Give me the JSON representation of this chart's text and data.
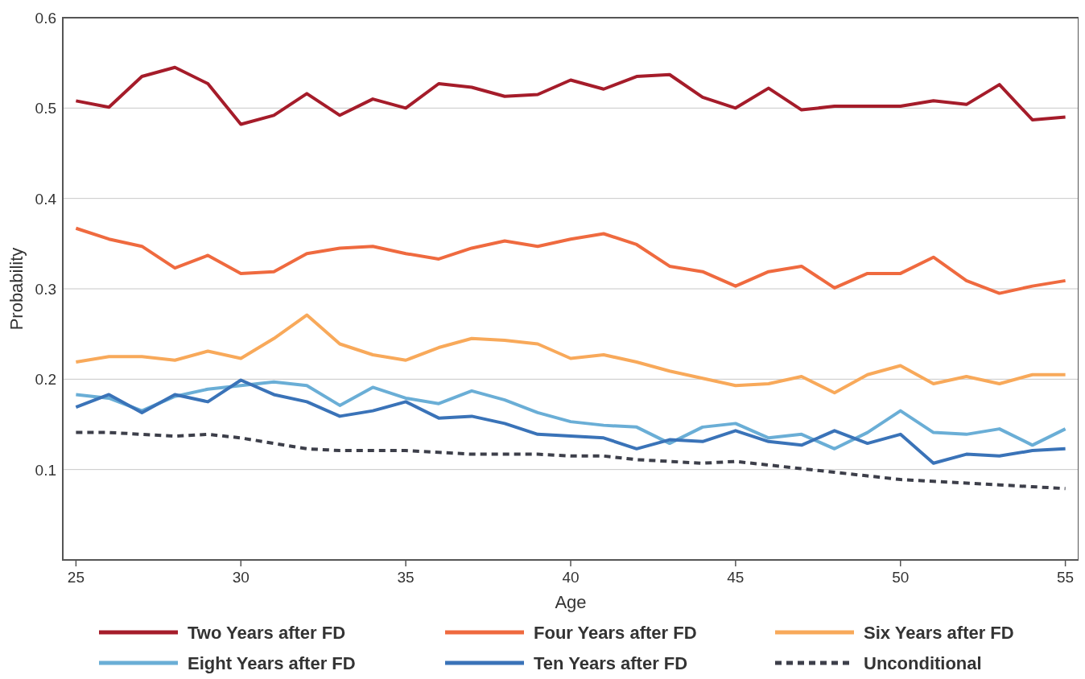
{
  "chart_data": {
    "type": "line",
    "xlabel": "Age",
    "ylabel": "Probability",
    "x": [
      25,
      26,
      27,
      28,
      29,
      30,
      31,
      32,
      33,
      34,
      35,
      36,
      37,
      38,
      39,
      40,
      41,
      42,
      43,
      44,
      45,
      46,
      47,
      48,
      49,
      50,
      51,
      52,
      53,
      54,
      55
    ],
    "xlim": [
      24.6,
      55.4
    ],
    "xticks": [
      25,
      30,
      35,
      40,
      45,
      50,
      55
    ],
    "ylim": [
      0,
      0.6
    ],
    "yticks": [
      0.1,
      0.2,
      0.3,
      0.4,
      0.5,
      0.6
    ],
    "grid": "y",
    "legend": "bottom",
    "series": [
      {
        "name": "Two Years after FD",
        "color": "#a51c2a",
        "values": [
          0.508,
          0.501,
          0.535,
          0.545,
          0.527,
          0.482,
          0.492,
          0.516,
          0.492,
          0.51,
          0.5,
          0.527,
          0.523,
          0.513,
          0.515,
          0.531,
          0.521,
          0.535,
          0.537,
          0.512,
          0.5,
          0.522,
          0.498,
          0.502,
          0.502,
          0.502,
          0.508,
          0.504,
          0.526,
          0.487,
          0.49
        ]
      },
      {
        "name": "Four Years after FD",
        "color": "#ef6a3f",
        "values": [
          0.367,
          0.355,
          0.347,
          0.323,
          0.337,
          0.317,
          0.319,
          0.339,
          0.345,
          0.347,
          0.339,
          0.333,
          0.345,
          0.353,
          0.347,
          0.355,
          0.361,
          0.349,
          0.325,
          0.319,
          0.303,
          0.319,
          0.325,
          0.301,
          0.317,
          0.317,
          0.335,
          0.309,
          0.295,
          0.303,
          0.309
        ]
      },
      {
        "name": "Six Years after FD",
        "color": "#f8a95a",
        "values": [
          0.219,
          0.225,
          0.225,
          0.221,
          0.231,
          0.223,
          0.245,
          0.271,
          0.239,
          0.227,
          0.221,
          0.235,
          0.245,
          0.243,
          0.239,
          0.223,
          0.227,
          0.219,
          0.209,
          0.201,
          0.193,
          0.195,
          0.203,
          0.185,
          0.205,
          0.215,
          0.195,
          0.203,
          0.195,
          0.205,
          0.205
        ]
      },
      {
        "name": "Eight Years after FD",
        "color": "#6aaed6",
        "values": [
          0.183,
          0.179,
          0.165,
          0.181,
          0.189,
          0.193,
          0.197,
          0.193,
          0.171,
          0.191,
          0.179,
          0.173,
          0.187,
          0.177,
          0.163,
          0.153,
          0.149,
          0.147,
          0.129,
          0.147,
          0.151,
          0.135,
          0.139,
          0.123,
          0.141,
          0.165,
          0.141,
          0.139,
          0.145,
          0.127,
          0.145
        ]
      },
      {
        "name": "Ten Years after FD",
        "color": "#3a73b8",
        "values": [
          0.169,
          0.183,
          0.163,
          0.183,
          0.175,
          0.199,
          0.183,
          0.175,
          0.159,
          0.165,
          0.175,
          0.157,
          0.159,
          0.151,
          0.139,
          0.137,
          0.135,
          0.123,
          0.133,
          0.131,
          0.143,
          0.131,
          0.127,
          0.143,
          0.129,
          0.139,
          0.107,
          0.117,
          0.115,
          0.121,
          0.123
        ]
      },
      {
        "name": "Unconditional",
        "color": "#3d3f4a",
        "line_style": "dashed",
        "values": [
          0.141,
          0.141,
          0.139,
          0.137,
          0.139,
          0.135,
          0.129,
          0.123,
          0.121,
          0.121,
          0.121,
          0.119,
          0.117,
          0.117,
          0.117,
          0.115,
          0.115,
          0.111,
          0.109,
          0.107,
          0.109,
          0.105,
          0.101,
          0.097,
          0.093,
          0.089,
          0.087,
          0.085,
          0.083,
          0.081,
          0.079
        ]
      }
    ]
  }
}
